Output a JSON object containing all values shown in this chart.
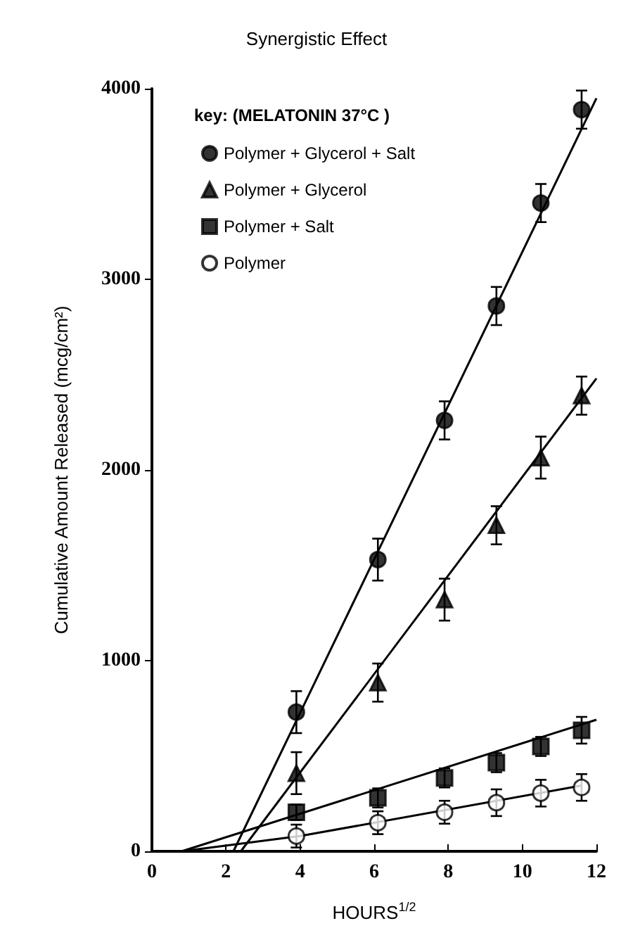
{
  "chart_data": {
    "type": "scatter",
    "title": "Synergistic Effect",
    "xlabel": "HOURS$^{1/2}$",
    "ylabel": "Cumulative Amount Released (mcg/cm²)",
    "legend_title": "key: (MELATONIN 37°C )",
    "legend": "top left",
    "grid": false,
    "xlim": [
      0,
      12
    ],
    "xticks": [
      0,
      2,
      4,
      6,
      8,
      10,
      12
    ],
    "ylim": [
      0,
      4000
    ],
    "yticks": [
      0,
      1000,
      2000,
      3000,
      4000
    ],
    "series": [
      {
        "name": "Polymer + Glycerol + Salt",
        "color": "#000000",
        "marker": "circle",
        "x": [
          3.9,
          6.1,
          7.9,
          9.3,
          10.5,
          11.6
        ],
        "values": [
          730,
          1530,
          2260,
          2860,
          3400,
          3890
        ],
        "errors": [
          110,
          110,
          100,
          100,
          100,
          100
        ]
      },
      {
        "name": "Polymer + Glycerol",
        "color": "#000000",
        "marker": "triangle",
        "x": [
          3.9,
          6.1,
          7.9,
          9.3,
          10.5,
          11.6
        ],
        "values": [
          410,
          885,
          1320,
          1710,
          2065,
          2390
        ],
        "errors": [
          110,
          100,
          110,
          100,
          110,
          100
        ]
      },
      {
        "name": "Polymer + Salt",
        "color": "#000000",
        "marker": "square",
        "x": [
          3.9,
          6.1,
          7.9,
          9.3,
          10.5,
          11.6
        ],
        "values": [
          205,
          280,
          385,
          465,
          550,
          635
        ],
        "errors": [
          40,
          50,
          50,
          50,
          50,
          70
        ]
      },
      {
        "name": "Polymer",
        "color": "#ffffff",
        "marker": "circle",
        "x": [
          3.9,
          6.1,
          7.9,
          9.3,
          10.5,
          11.6
        ],
        "values": [
          80,
          150,
          205,
          255,
          305,
          335
        ],
        "errors": [
          60,
          60,
          60,
          70,
          70,
          70
        ]
      },
      {
        "type": "line",
        "color": "#000000",
        "marker": "none",
        "x": [
          2.2,
          12
        ],
        "values": [
          0,
          3950
        ]
      },
      {
        "type": "line",
        "color": "#000000",
        "marker": "none",
        "x": [
          2.4,
          12
        ],
        "values": [
          0,
          2480
        ]
      },
      {
        "type": "line",
        "color": "#000000",
        "marker": "none",
        "x": [
          0.8,
          12
        ],
        "values": [
          0,
          690
        ]
      },
      {
        "type": "line",
        "color": "#000000",
        "marker": "none",
        "x": [
          0.8,
          4,
          11.6
        ],
        "values": [
          0,
          80,
          345
        ]
      }
    ]
  }
}
